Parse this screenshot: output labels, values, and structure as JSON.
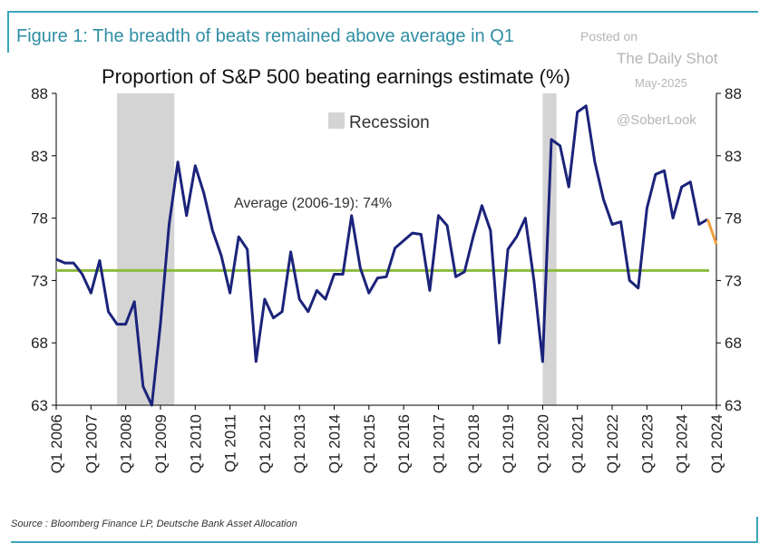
{
  "figure_title": "Figure 1: The breadth of beats remained above average in Q1",
  "watermark": {
    "posted": "Posted on",
    "site": "The Daily Shot",
    "date": "May-2025",
    "handle": "@SoberLook"
  },
  "source": "Source : Bloomberg Finance LP, Deutsche Bank Asset Allocation",
  "colors": {
    "frame": "#3aa6b9",
    "title": "#2f8ea4",
    "series": "#1b237a",
    "latest": "#f0a040",
    "average": "#8dba3f",
    "recession": "#d4d4d4"
  },
  "chart_data": {
    "type": "line",
    "title": "Proportion of S&P 500 beating earnings estimate (%)",
    "ylim": [
      63,
      88
    ],
    "yticks": [
      63,
      68,
      73,
      78,
      83,
      88
    ],
    "y_axis": "left and right",
    "grid": false,
    "xticks": [
      "Q1 2006",
      "Q1 2007",
      "Q1 2008",
      "Q1 2009",
      "Q1 2010",
      "Q1 2011",
      "Q1 2012",
      "Q1 2013",
      "Q1 2014",
      "Q1 2015",
      "Q1 2016",
      "Q1 2017",
      "Q1 2018",
      "Q1 2019",
      "Q1 2020",
      "Q1 2021",
      "Q1 2022",
      "Q1 2023",
      "Q1 2024",
      "Q1 2024"
    ],
    "legend": {
      "label": "Recession",
      "placement": "top-center"
    },
    "recessions": [
      {
        "start": "Q4 2007",
        "end": "Q2 2009"
      },
      {
        "start": "Q1 2020",
        "end": "Q2 2020"
      }
    ],
    "average": {
      "label": "Average (2006-19): 74%",
      "value": 73.8
    },
    "series": [
      {
        "start": "Q1 2006",
        "values": [
          74.7,
          74.4,
          74.4,
          73.5,
          72.0,
          74.6,
          70.5,
          69.5,
          69.5,
          71.3,
          64.5,
          63.0,
          69.5,
          77.5,
          82.5,
          78.2,
          82.2,
          80.0,
          77.0,
          75.0,
          72.0,
          76.5,
          75.5,
          66.5,
          71.5,
          70.0,
          70.5,
          75.3,
          71.5,
          70.5,
          72.2,
          71.5,
          73.5,
          73.5,
          78.2,
          74.0,
          72.0,
          73.2,
          73.3,
          75.6,
          76.2,
          76.8,
          76.7,
          72.2,
          78.2,
          77.4,
          73.3,
          73.7,
          76.5,
          79.0,
          77.0,
          68.0,
          75.5,
          76.5,
          78.0,
          73.0,
          66.5,
          84.3,
          83.8,
          80.5,
          86.5,
          87.0,
          82.5,
          79.5,
          77.5,
          77.7,
          73.0,
          72.4,
          78.8,
          81.5,
          81.8,
          78.0,
          80.5,
          80.9,
          77.5,
          77.9
        ]
      },
      {
        "start": "Q4 2024",
        "values": [
          77.9,
          75.9
        ]
      }
    ]
  }
}
